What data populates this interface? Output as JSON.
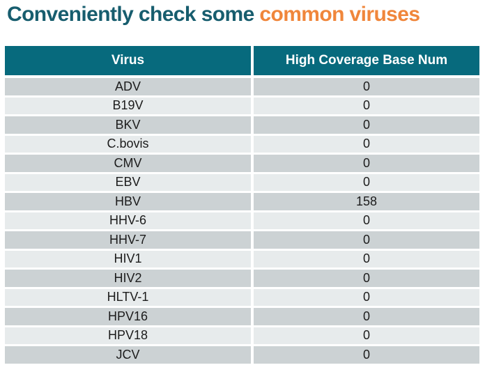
{
  "title": {
    "prefix": "Conveniently check some ",
    "highlight": "common viruses"
  },
  "colors": {
    "title_teal": "#175d6e",
    "title_orange": "#f0863b",
    "header_bg": "#076a7d",
    "header_text": "#ffffff",
    "row_dark": "#ccd2d4",
    "row_light": "#e7ebec",
    "cell_text": "#1c1c1c"
  },
  "table": {
    "columns": [
      "Virus",
      "High Coverage Base Num"
    ],
    "rows": [
      {
        "virus": "ADV",
        "value": "0"
      },
      {
        "virus": "B19V",
        "value": "0"
      },
      {
        "virus": "BKV",
        "value": "0"
      },
      {
        "virus": "C.bovis",
        "value": "0"
      },
      {
        "virus": "CMV",
        "value": "0"
      },
      {
        "virus": "EBV",
        "value": "0"
      },
      {
        "virus": "HBV",
        "value": "158"
      },
      {
        "virus": "HHV-6",
        "value": "0"
      },
      {
        "virus": "HHV-7",
        "value": "0"
      },
      {
        "virus": "HIV1",
        "value": "0"
      },
      {
        "virus": "HIV2",
        "value": "0"
      },
      {
        "virus": "HLTV-1",
        "value": "0"
      },
      {
        "virus": "HPV16",
        "value": "0"
      },
      {
        "virus": "HPV18",
        "value": "0"
      },
      {
        "virus": "JCV",
        "value": "0"
      }
    ]
  },
  "chart_data": {
    "type": "table",
    "title": "Conveniently check some common viruses",
    "columns": [
      "Virus",
      "High Coverage Base Num"
    ],
    "rows": [
      [
        "ADV",
        0
      ],
      [
        "B19V",
        0
      ],
      [
        "BKV",
        0
      ],
      [
        "C.bovis",
        0
      ],
      [
        "CMV",
        0
      ],
      [
        "EBV",
        0
      ],
      [
        "HBV",
        158
      ],
      [
        "HHV-6",
        0
      ],
      [
        "HHV-7",
        0
      ],
      [
        "HIV1",
        0
      ],
      [
        "HIV2",
        0
      ],
      [
        "HLTV-1",
        0
      ],
      [
        "HPV16",
        0
      ],
      [
        "HPV18",
        0
      ],
      [
        "JCV",
        0
      ]
    ]
  }
}
